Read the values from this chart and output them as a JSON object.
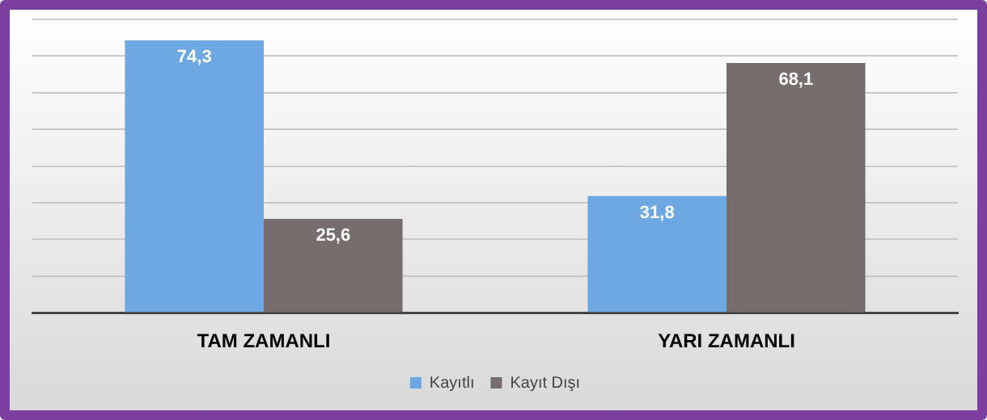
{
  "chart_data": {
    "type": "bar",
    "categories": [
      "TAM ZAMANLI",
      "YARI ZAMANLI"
    ],
    "series": [
      {
        "name": "Kayıtlı",
        "color": "#6ea8e2",
        "values": [
          74.3,
          31.8
        ],
        "value_labels": [
          "74,3",
          "31,8"
        ]
      },
      {
        "name": "Kayıt Dışı",
        "color": "#756e6c",
        "values": [
          25.6,
          68.1
        ],
        "value_labels": [
          "25,6",
          "68,1"
        ]
      }
    ],
    "tick_labels": "x",
    "grid": "y",
    "legend": "bottom"
  }
}
